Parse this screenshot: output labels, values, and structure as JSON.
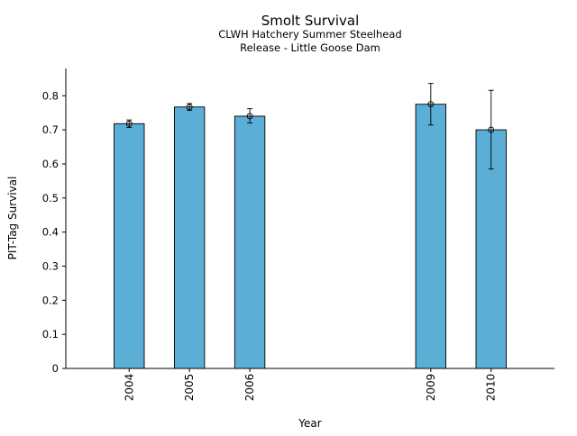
{
  "chart_data": {
    "type": "bar",
    "title": "Smolt Survival",
    "subtitle_lines": [
      "CLWH Hatchery Summer Steelhead",
      "Release - Little Goose Dam"
    ],
    "xlabel": "Year",
    "ylabel": "PIT-Tag Survival",
    "x_range": [
      2002.95,
      2011.05
    ],
    "ylim": [
      0,
      0.88
    ],
    "bar_width_years": 0.5,
    "y_ticks": [
      0,
      0.1,
      0.2,
      0.3,
      0.4,
      0.5,
      0.6,
      0.7,
      0.8
    ],
    "y_tick_labels": [
      "0",
      "0.1",
      "0.2",
      "0.3",
      "0.4",
      "0.5",
      "0.6",
      "0.7",
      "0.8"
    ],
    "x_ticks": [
      2004,
      2005,
      2006,
      2009,
      2010
    ],
    "x_tick_labels": [
      "2004",
      "2005",
      "2006",
      "2009",
      "2010"
    ],
    "bars": [
      {
        "year": 2004,
        "value": 0.718,
        "err_low": 0.707,
        "err_high": 0.729
      },
      {
        "year": 2005,
        "value": 0.767,
        "err_low": 0.757,
        "err_high": 0.777
      },
      {
        "year": 2006,
        "value": 0.74,
        "err_low": 0.72,
        "err_high": 0.762
      },
      {
        "year": 2009,
        "value": 0.775,
        "err_low": 0.714,
        "err_high": 0.836
      },
      {
        "year": 2010,
        "value": 0.7,
        "err_low": 0.585,
        "err_high": 0.816
      }
    ],
    "bar_color": "#5bafd7",
    "edge_color": "#000000",
    "grid": false,
    "legend": false
  }
}
